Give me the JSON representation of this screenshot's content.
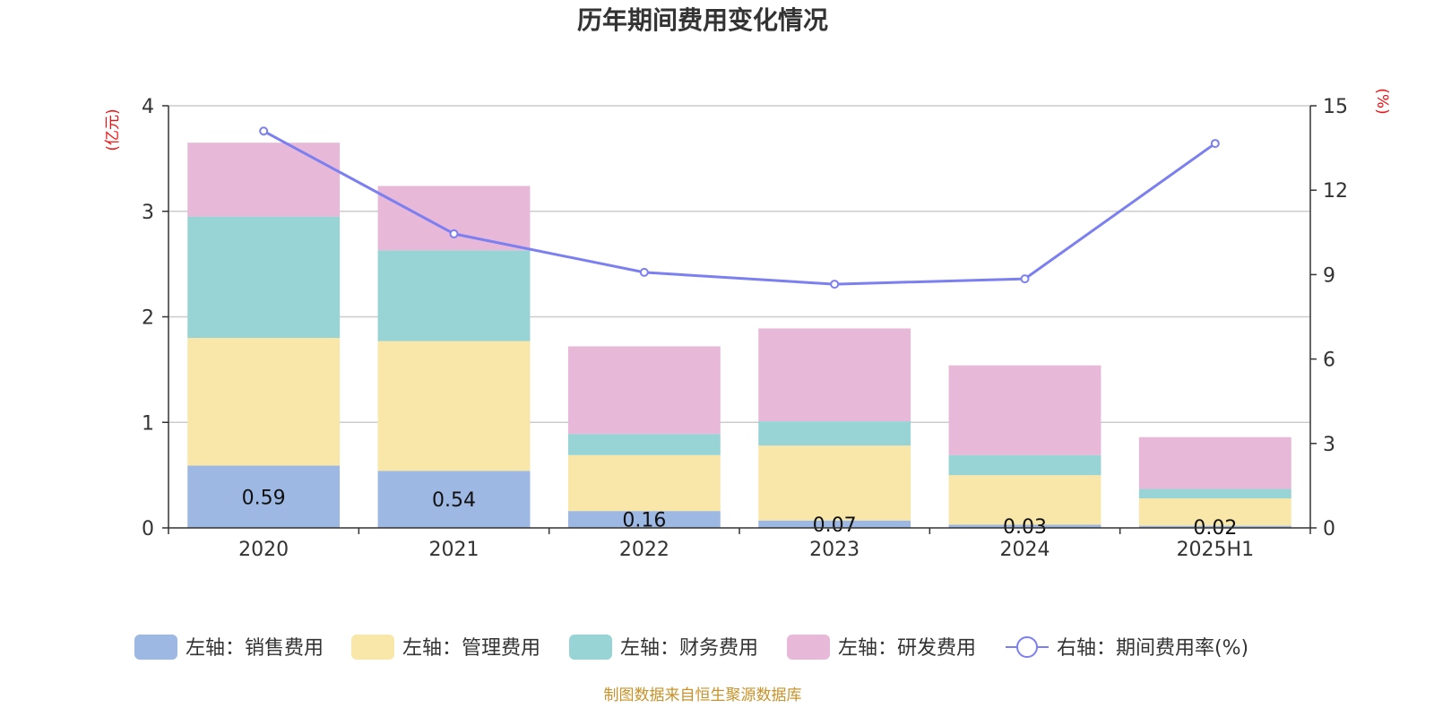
{
  "chart_data": {
    "type": "bar",
    "title": "历年期间费用变化情况",
    "categories": [
      "2020",
      "2021",
      "2022",
      "2023",
      "2024",
      "2025H1"
    ],
    "left_axis": {
      "unit_label": "(亿元)",
      "ylim": [
        0,
        4
      ],
      "ticks": [
        "0",
        "1",
        "2",
        "3",
        "4"
      ]
    },
    "right_axis": {
      "unit_label": "(%)",
      "ylim": [
        0,
        15
      ],
      "ticks": [
        "0",
        "3",
        "6",
        "9",
        "12",
        "15"
      ]
    },
    "grid": true,
    "legend_position": "bottom",
    "series": [
      {
        "name": "左轴：销售费用",
        "type": "bar",
        "axis": "left",
        "color": "#9db8e3",
        "values": [
          0.59,
          0.54,
          0.16,
          0.07,
          0.03,
          0.02
        ],
        "labels": [
          "0.59",
          "0.54",
          "0.16",
          "0.07",
          "0.03",
          "0.02"
        ]
      },
      {
        "name": "左轴：管理费用",
        "type": "bar",
        "axis": "left",
        "color": "#f8e7a8",
        "values": [
          1.21,
          1.23,
          0.53,
          0.71,
          0.47,
          0.26
        ]
      },
      {
        "name": "左轴：财务费用",
        "type": "bar",
        "axis": "left",
        "color": "#98d4d5",
        "values": [
          1.15,
          0.86,
          0.2,
          0.23,
          0.19,
          0.09
        ]
      },
      {
        "name": "左轴：研发费用",
        "type": "bar",
        "axis": "left",
        "color": "#e7b8d8",
        "values": [
          0.7,
          0.61,
          0.83,
          0.88,
          0.85,
          0.49
        ]
      },
      {
        "name": "右轴：期间费用率(%)",
        "type": "line",
        "axis": "right",
        "color": "#7b7ff0",
        "values": [
          14.1,
          10.45,
          9.08,
          8.66,
          8.85,
          13.66
        ]
      }
    ],
    "source": "制图数据来自恒生聚源数据库"
  }
}
